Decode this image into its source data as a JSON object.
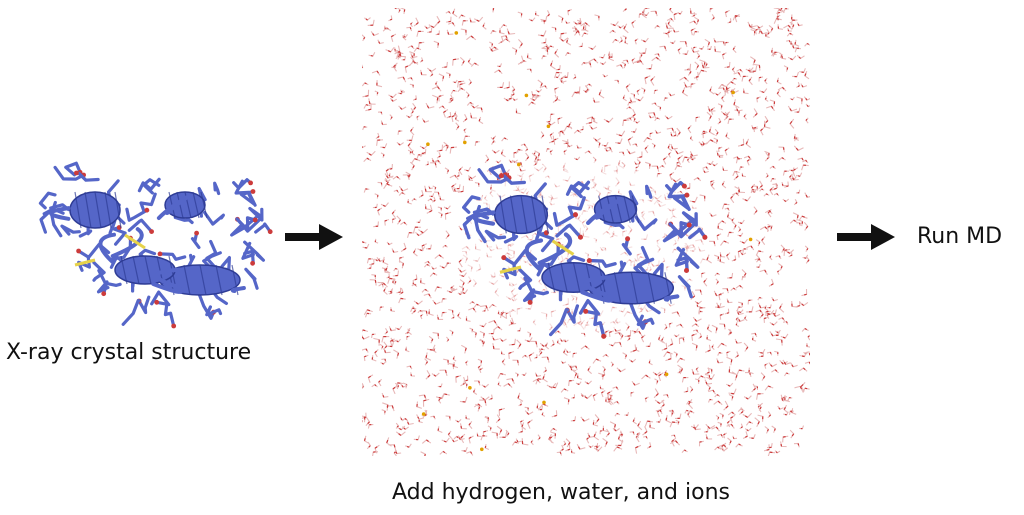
{
  "steps": {
    "crystal_label": "X-ray crystal structure",
    "solvate_label": "Add hydrogen, water, and ions",
    "run_label": "Run MD"
  },
  "icons": {
    "arrow": "right-arrow-icon",
    "protein": "protein-ribbon-icon",
    "water": "water-box-icon"
  },
  "colors": {
    "protein": "#5566c8",
    "protein_dark": "#2e3c95",
    "water_oxygen": "#cc3b3b",
    "water_hydrogen": "#e8b9b9",
    "ion": "#e2a100",
    "disulfide": "#e6d24a",
    "arrow": "#111111"
  }
}
